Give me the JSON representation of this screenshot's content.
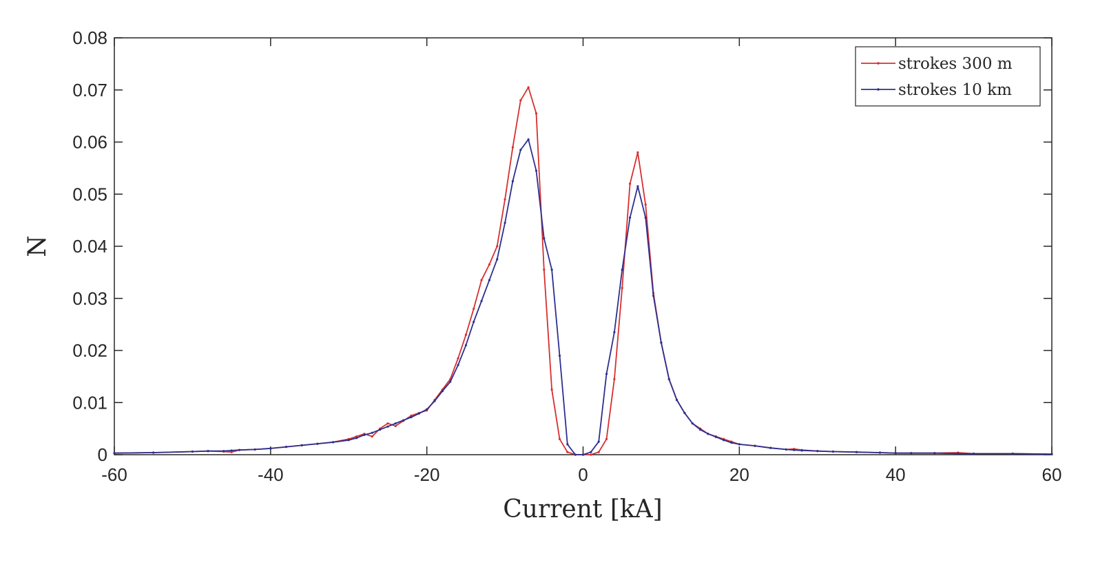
{
  "chart_data": {
    "type": "line",
    "title": "",
    "xlabel": "Current [kA]",
    "ylabel": "N",
    "xlim": [
      -60,
      60
    ],
    "ylim": [
      0,
      0.08
    ],
    "xticks": [
      -60,
      -40,
      -20,
      0,
      20,
      40,
      60
    ],
    "xtick_labels": [
      "-60",
      "-40",
      "-20",
      "0",
      "20",
      "40",
      "60"
    ],
    "yticks": [
      0,
      0.01,
      0.02,
      0.03,
      0.04,
      0.05,
      0.06,
      0.07,
      0.08
    ],
    "ytick_labels": [
      "0",
      "0.01",
      "0.02",
      "0.03",
      "0.04",
      "0.05",
      "0.06",
      "0.07",
      "0.08"
    ],
    "grid": false,
    "legend_position": "top-right",
    "series": [
      {
        "name": "strokes 300 m",
        "color": "#d62f2f",
        "x": [
          -60,
          -55,
          -50,
          -48,
          -46,
          -45,
          -44,
          -42,
          -40,
          -38,
          -36,
          -34,
          -32,
          -30,
          -29,
          -28,
          -27,
          -26,
          -25,
          -24,
          -23,
          -22,
          -21,
          -20,
          -19,
          -18,
          -17,
          -16,
          -15,
          -14,
          -13,
          -12,
          -11,
          -10,
          -9,
          -8,
          -7,
          -6,
          -5,
          -4,
          -3,
          -2,
          -1,
          0,
          1,
          2,
          3,
          4,
          5,
          6,
          7,
          8,
          9,
          10,
          11,
          12,
          13,
          14,
          15,
          16,
          17,
          18,
          19,
          20,
          22,
          24,
          26,
          27,
          28,
          30,
          32,
          35,
          38,
          40,
          42,
          45,
          48,
          50,
          55,
          60
        ],
        "y": [
          0.0003,
          0.0004,
          0.0006,
          0.0007,
          0.0006,
          0.0005,
          0.0009,
          0.001,
          0.0012,
          0.0015,
          0.0018,
          0.0021,
          0.0024,
          0.003,
          0.0035,
          0.004,
          0.0035,
          0.005,
          0.006,
          0.0055,
          0.0065,
          0.0075,
          0.008,
          0.0085,
          0.0105,
          0.0125,
          0.0145,
          0.0185,
          0.023,
          0.028,
          0.0335,
          0.0365,
          0.04,
          0.049,
          0.059,
          0.068,
          0.0705,
          0.0655,
          0.0355,
          0.0125,
          0.003,
          0.0005,
          0.0,
          0.0,
          0.0,
          0.0005,
          0.003,
          0.0145,
          0.032,
          0.052,
          0.058,
          0.048,
          0.031,
          0.0215,
          0.0145,
          0.0105,
          0.008,
          0.006,
          0.005,
          0.004,
          0.0035,
          0.003,
          0.0025,
          0.002,
          0.0017,
          0.0013,
          0.001,
          0.0011,
          0.0009,
          0.0007,
          0.0006,
          0.0005,
          0.0004,
          0.0003,
          0.0003,
          0.0003,
          0.0004,
          0.0002,
          0.0002,
          0.0001
        ]
      },
      {
        "name": "strokes 10 km",
        "color": "#2b2f8f",
        "x": [
          -60,
          -55,
          -50,
          -48,
          -46,
          -45,
          -44,
          -42,
          -40,
          -38,
          -36,
          -34,
          -32,
          -30,
          -29,
          -28,
          -27,
          -26,
          -25,
          -24,
          -23,
          -22,
          -21,
          -20,
          -19,
          -18,
          -17,
          -16,
          -15,
          -14,
          -13,
          -12,
          -11,
          -10,
          -9,
          -8,
          -7,
          -6,
          -5,
          -4,
          -3,
          -2,
          -1,
          0,
          1,
          2,
          3,
          4,
          5,
          6,
          7,
          8,
          9,
          10,
          11,
          12,
          13,
          14,
          15,
          16,
          17,
          18,
          19,
          20,
          22,
          24,
          26,
          27,
          28,
          30,
          32,
          35,
          38,
          40,
          42,
          45,
          48,
          50,
          55,
          60
        ],
        "y": [
          0.0003,
          0.0004,
          0.0006,
          0.0007,
          0.0007,
          0.0008,
          0.0009,
          0.001,
          0.0012,
          0.0015,
          0.0018,
          0.0021,
          0.0024,
          0.0028,
          0.0032,
          0.0038,
          0.0042,
          0.0048,
          0.0054,
          0.006,
          0.0066,
          0.0072,
          0.0079,
          0.0087,
          0.0103,
          0.0122,
          0.014,
          0.0172,
          0.021,
          0.0255,
          0.0295,
          0.0335,
          0.0375,
          0.0445,
          0.0525,
          0.0585,
          0.0605,
          0.0545,
          0.0415,
          0.0355,
          0.019,
          0.002,
          0.0,
          0.0,
          0.0005,
          0.0025,
          0.0155,
          0.0235,
          0.0355,
          0.0455,
          0.0515,
          0.0455,
          0.0305,
          0.0215,
          0.0145,
          0.0105,
          0.008,
          0.006,
          0.0048,
          0.004,
          0.0034,
          0.0028,
          0.0023,
          0.002,
          0.0017,
          0.0013,
          0.001,
          0.0009,
          0.0008,
          0.0007,
          0.0006,
          0.0005,
          0.0004,
          0.0003,
          0.0003,
          0.0003,
          0.0002,
          0.0002,
          0.0002,
          0.0001
        ]
      }
    ]
  }
}
